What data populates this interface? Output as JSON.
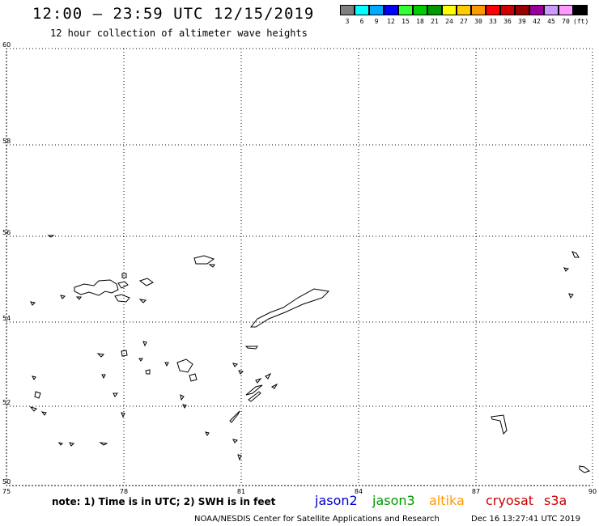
{
  "header": {
    "title": "12:00 – 23:59 UTC 12/15/2019",
    "subtitle": "12 hour collection of altimeter wave heights"
  },
  "legend": {
    "colors": [
      "#808080",
      "#00ffff",
      "#00aaff",
      "#0000ff",
      "#33ff33",
      "#00cc00",
      "#009900",
      "#ffff00",
      "#ffcc00",
      "#ff9900",
      "#ff0000",
      "#cc0000",
      "#990000",
      "#990099",
      "#cc99ff",
      "#ff99ff",
      "#000000"
    ],
    "labels": [
      "3",
      "6",
      "9",
      "12",
      "15",
      "18",
      "21",
      "24",
      "27",
      "30",
      "33",
      "36",
      "39",
      "42",
      "45",
      "70",
      "(ft)"
    ]
  },
  "map": {
    "lon_ticks": [
      "75",
      "78",
      "81",
      "84",
      "87",
      "90"
    ],
    "lat_ticks": [
      "50",
      "52",
      "54",
      "56",
      "58",
      "60"
    ],
    "lon_range": [
      75,
      90
    ],
    "lat_range": [
      50,
      60
    ],
    "grid": true
  },
  "footer": {
    "note": "note: 1) Time is in UTC; 2) SWH is in feet",
    "satellites": [
      {
        "name": "jason2",
        "color": "#0000cc"
      },
      {
        "name": "jason3",
        "color": "#009900"
      },
      {
        "name": "altika",
        "color": "#ff9900"
      },
      {
        "name": "cryosat",
        "color": "#cc0000"
      },
      {
        "name": "s3a",
        "color": "#cc0000"
      }
    ],
    "credit": "NOAA/NESDIS Center for Satellite Applications and Research",
    "timestamp": "Dec 16 13:27:41 UTC 2019"
  }
}
